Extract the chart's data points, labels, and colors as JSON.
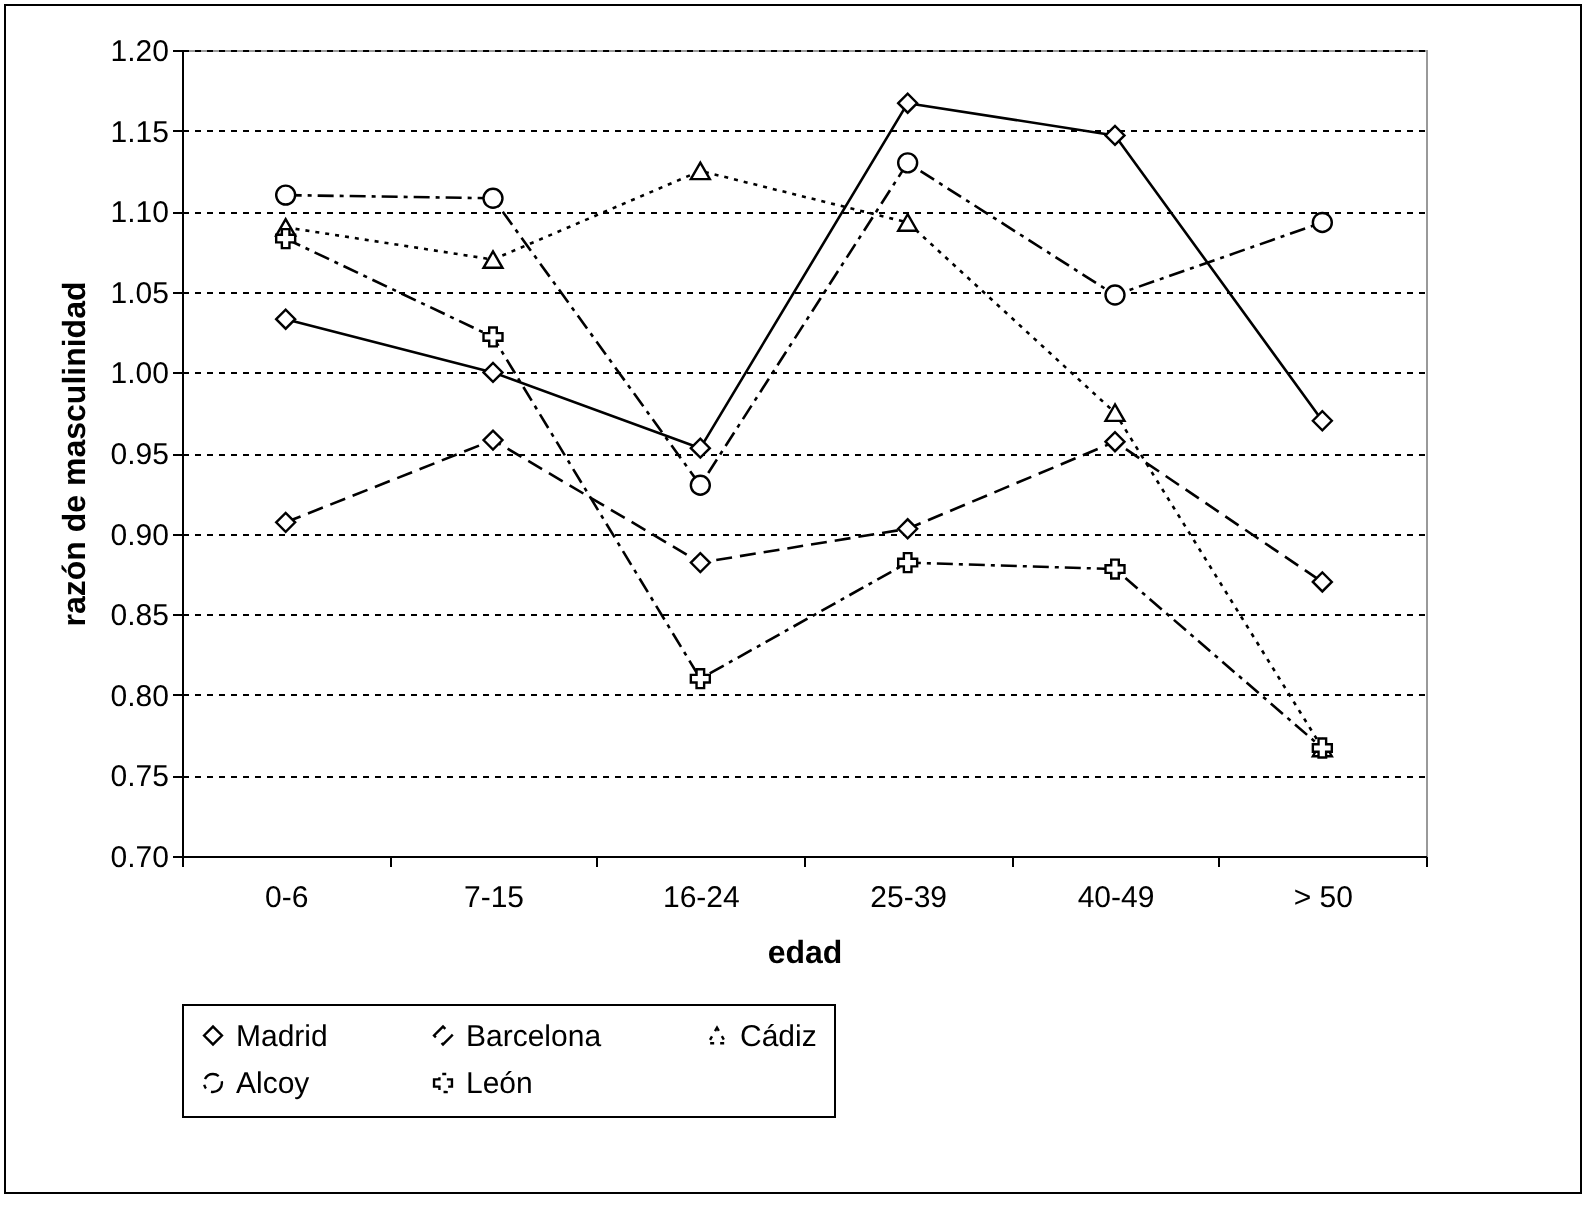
{
  "chart_data": {
    "type": "line",
    "xlabel": "edad",
    "ylabel": "razón de masculinidad",
    "categories": [
      "0-6",
      "7-15",
      "16-24",
      "25-39",
      "40-49",
      "> 50"
    ],
    "ylim": [
      0.7,
      1.2
    ],
    "yticks": [
      {
        "value": 0.7,
        "label": "0.70"
      },
      {
        "value": 0.75,
        "label": "0.75"
      },
      {
        "value": 0.8,
        "label": "0.80"
      },
      {
        "value": 0.85,
        "label": "0.85"
      },
      {
        "value": 0.9,
        "label": "0.90"
      },
      {
        "value": 0.95,
        "label": "0.95"
      },
      {
        "value": 1.0,
        "label": "1.00"
      },
      {
        "value": 1.05,
        "label": "1.05"
      },
      {
        "value": 1.1,
        "label": "1.10"
      },
      {
        "value": 1.15,
        "label": "1.15"
      },
      {
        "value": 1.2,
        "label": "1.20"
      }
    ],
    "grid": "y",
    "legend": "bottom",
    "series": [
      {
        "name": "Madrid",
        "color": "#000000",
        "marker": "diamond",
        "line_style": "solid",
        "values": [
          1.033,
          1.0,
          0.953,
          1.167,
          1.147,
          0.97
        ]
      },
      {
        "name": "Barcelona",
        "color": "#000000",
        "marker": "diamond",
        "line_style": "dashed",
        "values": [
          0.907,
          0.958,
          0.882,
          0.903,
          0.957,
          0.87
        ]
      },
      {
        "name": "Cádiz",
        "color": "#000000",
        "marker": "triangle",
        "line_style": "dotted",
        "values": [
          1.09,
          1.07,
          1.125,
          1.093,
          0.975,
          0.767
        ]
      },
      {
        "name": "Alcoy",
        "color": "#000000",
        "marker": "circle",
        "line_style": "dashdot",
        "values": [
          1.11,
          1.108,
          0.93,
          1.13,
          1.048,
          1.093
        ]
      },
      {
        "name": "León",
        "color": "#000000",
        "marker": "cross",
        "line_style": "dashdot",
        "values": [
          1.083,
          1.022,
          0.81,
          0.882,
          0.878,
          0.767
        ]
      }
    ]
  }
}
